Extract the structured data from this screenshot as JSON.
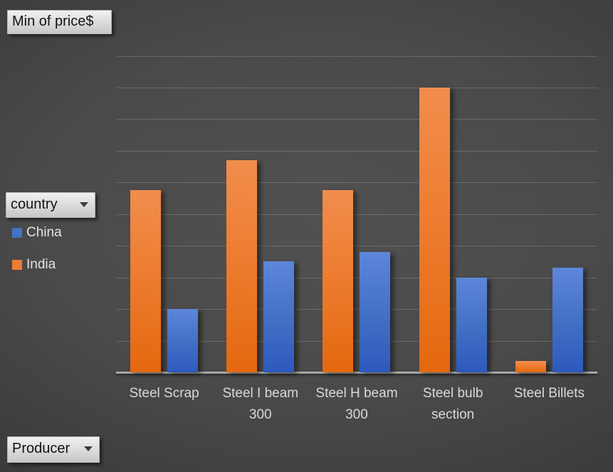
{
  "field_buttons": {
    "value": "Min of price$",
    "legend": "country",
    "axis": "Producer"
  },
  "legend": {
    "items": [
      {
        "label": "China",
        "color": "#4472C4"
      },
      {
        "label": "India",
        "color": "#ED7D31"
      }
    ]
  },
  "chart_data": {
    "type": "bar",
    "title": "",
    "xlabel": "Producer",
    "ylabel": "Min of price$",
    "categories": [
      "Steel Scrap",
      "Steel I beam 300",
      "Steel H beam 300",
      "Steel bulb section",
      "Steel Billets"
    ],
    "series": [
      {
        "name": "India",
        "color": "#ED7D31",
        "values": [
          5.75,
          6.7,
          5.75,
          9.0,
          0.35
        ]
      },
      {
        "name": "China",
        "color": "#4472C4",
        "values": [
          2.0,
          3.5,
          3.8,
          3.0,
          3.3
        ]
      }
    ],
    "legend_order": [
      "China",
      "India"
    ],
    "legend_position": "left",
    "ylim": [
      0,
      10
    ],
    "gridlines": true,
    "value_axis_labels_visible": false,
    "value_unit": "major-gridline intervals (value axis labels hidden in chart)"
  }
}
